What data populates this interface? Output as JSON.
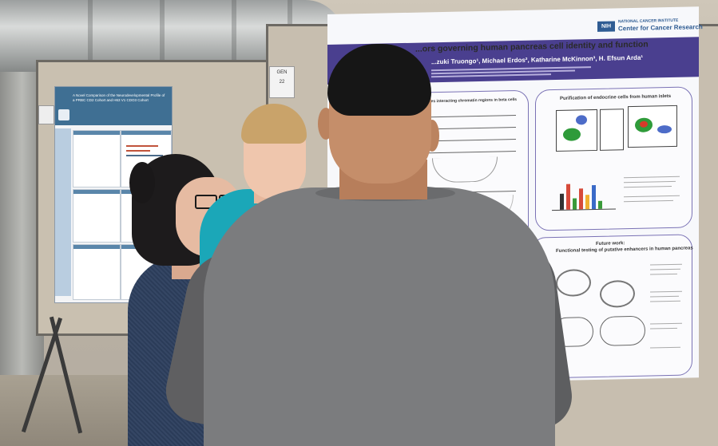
{
  "poster_right": {
    "title": "...ors governing human pancreas cell identity and function",
    "authors": "...zuki Truongo¹, Michael Erdos², Katharine McKinnon³, H. Efsun Arda¹",
    "nih_logo": "NIH",
    "institute_line1": "NATIONAL CANCER INSTITUTE",
    "institute_line2": "Center for Cancer Research",
    "panel_left_title": "...identifies interacting chromatin regions in beta cells",
    "panel_right_title": "Purification of endocrine cells from human islets",
    "panel_future_title1": "Future work:",
    "panel_future_title2": "Functional testing of putative enhancers in human pancreas"
  },
  "poster_left": {
    "title": "A Novel Comparison of the Neurodevelopmental Profile of a PRBC CD2 Cohort and H63 V1 CDO3 Cohort"
  },
  "sign": {
    "text_top": "GEN",
    "text_bottom": "22"
  },
  "colors": {
    "poster_purple": "#4a3f8f",
    "left_poster_blue": "#3f6f93",
    "teal_shirt": "#1ba7b8",
    "grey_shirt": "#7b7c7e"
  }
}
